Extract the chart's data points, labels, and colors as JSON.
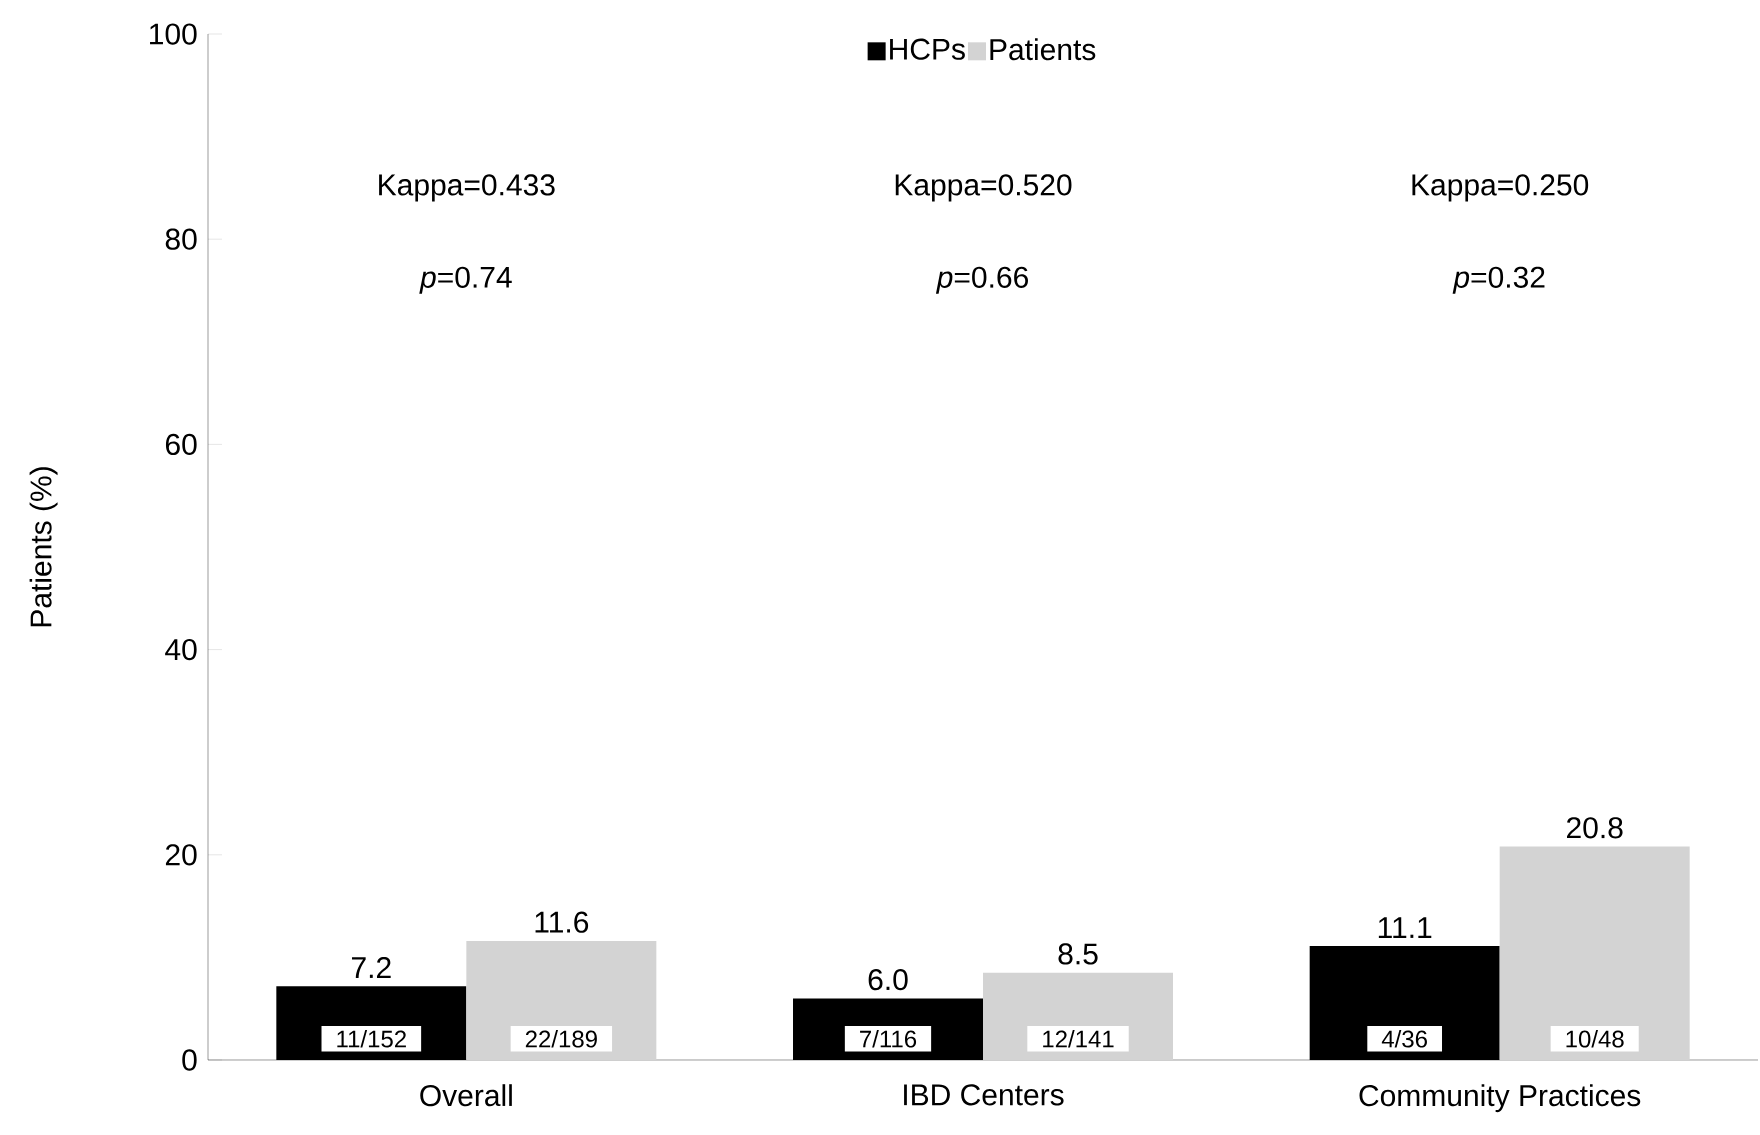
{
  "chart_data": {
    "type": "bar",
    "ylabel": "Patients (%)",
    "categories": [
      "Overall",
      "IBD Centers",
      "Community Practices"
    ],
    "series": [
      {
        "name": "HCPs",
        "color": "#000000",
        "values": [
          7.2,
          6.0,
          11.1
        ],
        "value_labels": [
          "7.2",
          "6.0",
          "11.1"
        ]
      },
      {
        "name": "Patients",
        "color": "#d3d3d3",
        "values": [
          11.6,
          8.5,
          20.8
        ],
        "value_labels": [
          "11.6",
          "8.5",
          "20.8"
        ]
      }
    ],
    "ylim": [
      0,
      100
    ],
    "yticks": [
      0,
      20,
      40,
      60,
      80,
      100
    ],
    "grid": false,
    "legend": "top",
    "annotations": [
      "Kappa=0.433",
      "*p*=0.74",
      "11/152",
      "22/189",
      "Kappa=0.520",
      "*p*=0.66",
      "7/116",
      "12/141",
      "Kappa=0.250",
      "*p*=0.32",
      "4/36",
      "10/48"
    ]
  }
}
